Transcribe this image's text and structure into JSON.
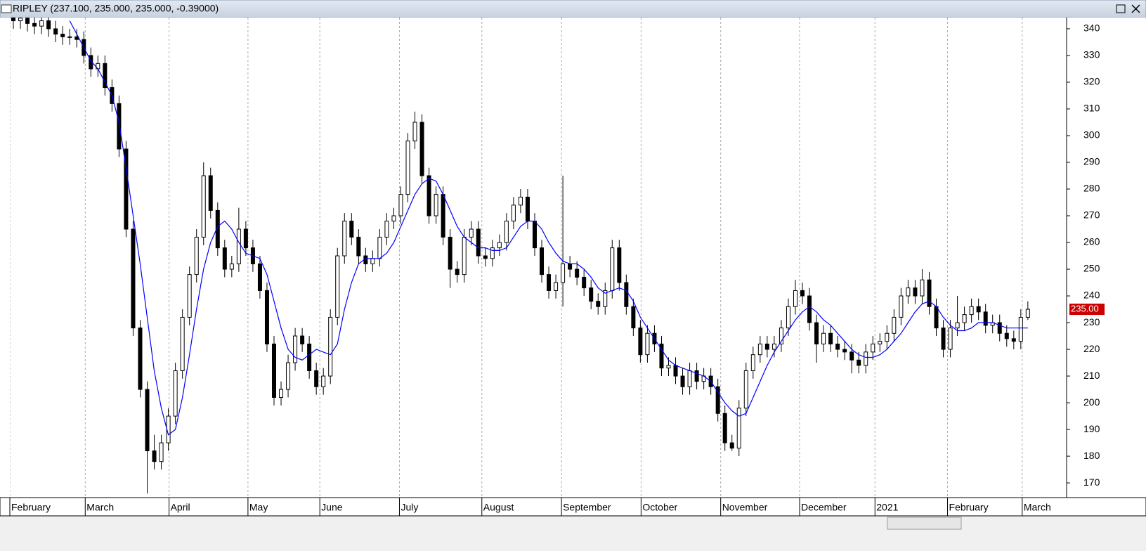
{
  "chart_data": {
    "type": "candlestick",
    "title": "RIPLEY (237.100, 235.000, 235.000, -0.39000)",
    "up_color": "#ffffff",
    "down_color": "#000000",
    "outline_color": "#000000",
    "ylim": [
      164.5,
      344.2
    ],
    "yticks": [
      170,
      180,
      190,
      200,
      210,
      220,
      230,
      240,
      250,
      260,
      270,
      280,
      290,
      300,
      310,
      320,
      330,
      340
    ],
    "xlim": [
      0,
      150
    ],
    "xticks": [
      {
        "value": 0,
        "label": "February"
      },
      {
        "value": 10.7,
        "label": "March"
      },
      {
        "value": 22.6,
        "label": "April"
      },
      {
        "value": 33.8,
        "label": "May"
      },
      {
        "value": 44,
        "label": "June"
      },
      {
        "value": 55.3,
        "label": "July"
      },
      {
        "value": 67,
        "label": "August"
      },
      {
        "value": 78.3,
        "label": "September"
      },
      {
        "value": 89.6,
        "label": "October"
      },
      {
        "value": 100.9,
        "label": "November"
      },
      {
        "value": 112.1,
        "label": "December"
      },
      {
        "value": 122.8,
        "label": "2021"
      },
      {
        "value": 133.1,
        "label": "February"
      },
      {
        "value": 143.7,
        "label": "March"
      }
    ],
    "grid": true,
    "last_price": {
      "value": 235,
      "label": "235.00",
      "color": "#cc0000"
    },
    "ohlc": [
      [
        345,
        348,
        340,
        343
      ],
      [
        343,
        347,
        340,
        344
      ],
      [
        344,
        347,
        339,
        342
      ],
      [
        342,
        345,
        338,
        341
      ],
      [
        341,
        346,
        338,
        343
      ],
      [
        343,
        346,
        337,
        340
      ],
      [
        340,
        343,
        335,
        338
      ],
      [
        338,
        341,
        334,
        337
      ],
      [
        337,
        340,
        334,
        337
      ],
      [
        337,
        340,
        333,
        336
      ],
      [
        336,
        339,
        327,
        330
      ],
      [
        330,
        333,
        322,
        325
      ],
      [
        325,
        330,
        322,
        327
      ],
      [
        327,
        330,
        315,
        318
      ],
      [
        318,
        321,
        309,
        312
      ],
      [
        312,
        315,
        292,
        295
      ],
      [
        295,
        298,
        262,
        265
      ],
      [
        265,
        268,
        225,
        228
      ],
      [
        228,
        231,
        202,
        205
      ],
      [
        205,
        208,
        166,
        182
      ],
      [
        182,
        188,
        175,
        178
      ],
      [
        178,
        188,
        175,
        185
      ],
      [
        185,
        198,
        182,
        195
      ],
      [
        195,
        215,
        192,
        212
      ],
      [
        212,
        235,
        209,
        232
      ],
      [
        232,
        251,
        229,
        248
      ],
      [
        248,
        265,
        245,
        262
      ],
      [
        262,
        290,
        259,
        285
      ],
      [
        285,
        288,
        269,
        272
      ],
      [
        272,
        275,
        255,
        258
      ],
      [
        258,
        261,
        247,
        250
      ],
      [
        250,
        255,
        247,
        252
      ],
      [
        252,
        273,
        249,
        265
      ],
      [
        265,
        268,
        255,
        258
      ],
      [
        258,
        261,
        249,
        252
      ],
      [
        252,
        255,
        239,
        242
      ],
      [
        242,
        245,
        219,
        222
      ],
      [
        222,
        225,
        199,
        202
      ],
      [
        202,
        208,
        199,
        205
      ],
      [
        205,
        218,
        202,
        215
      ],
      [
        215,
        228,
        212,
        225
      ],
      [
        225,
        228,
        219,
        222
      ],
      [
        222,
        225,
        209,
        212
      ],
      [
        212,
        215,
        203,
        206
      ],
      [
        206,
        213,
        203,
        210
      ],
      [
        210,
        235,
        207,
        232
      ],
      [
        232,
        258,
        229,
        255
      ],
      [
        255,
        271,
        252,
        268
      ],
      [
        268,
        271,
        259,
        262
      ],
      [
        262,
        265,
        252,
        255
      ],
      [
        255,
        258,
        249,
        252
      ],
      [
        252,
        257,
        249,
        254
      ],
      [
        254,
        265,
        251,
        262
      ],
      [
        262,
        271,
        259,
        268
      ],
      [
        268,
        273,
        265,
        270
      ],
      [
        270,
        281,
        267,
        278
      ],
      [
        278,
        301,
        275,
        298
      ],
      [
        298,
        309,
        295,
        305
      ],
      [
        305,
        308,
        282,
        285
      ],
      [
        285,
        288,
        267,
        270
      ],
      [
        270,
        281,
        267,
        278
      ],
      [
        278,
        281,
        259,
        262
      ],
      [
        262,
        265,
        243,
        250
      ],
      [
        250,
        253,
        245,
        248
      ],
      [
        248,
        265,
        245,
        262
      ],
      [
        262,
        268,
        259,
        265
      ],
      [
        265,
        268,
        252,
        255
      ],
      [
        255,
        258,
        251,
        254
      ],
      [
        254,
        261,
        251,
        258
      ],
      [
        258,
        263,
        255,
        260
      ],
      [
        260,
        271,
        257,
        268
      ],
      [
        268,
        277,
        265,
        274
      ],
      [
        274,
        280,
        271,
        277
      ],
      [
        277,
        280,
        265,
        268
      ],
      [
        268,
        271,
        255,
        258
      ],
      [
        258,
        261,
        245,
        248
      ],
      [
        248,
        251,
        239,
        242
      ],
      [
        242,
        248,
        239,
        245
      ],
      [
        245,
        285,
        236,
        252
      ],
      [
        252,
        255,
        247,
        250
      ],
      [
        250,
        253,
        244,
        247
      ],
      [
        247,
        250,
        240,
        243
      ],
      [
        243,
        246,
        235,
        238
      ],
      [
        238,
        241,
        233,
        236
      ],
      [
        236,
        245,
        233,
        242
      ],
      [
        242,
        261,
        239,
        258
      ],
      [
        258,
        261,
        242,
        245
      ],
      [
        245,
        248,
        233,
        236
      ],
      [
        236,
        239,
        225,
        228
      ],
      [
        228,
        231,
        215,
        218
      ],
      [
        218,
        229,
        215,
        226
      ],
      [
        226,
        229,
        219,
        222
      ],
      [
        222,
        225,
        210,
        213
      ],
      [
        213,
        217,
        210,
        214
      ],
      [
        214,
        217,
        207,
        210
      ],
      [
        210,
        213,
        203,
        206
      ],
      [
        206,
        215,
        203,
        212
      ],
      [
        212,
        215,
        205,
        208
      ],
      [
        208,
        213,
        205,
        210
      ],
      [
        210,
        213,
        203,
        206
      ],
      [
        206,
        209,
        193,
        196
      ],
      [
        196,
        199,
        182,
        185
      ],
      [
        185,
        188,
        182,
        183
      ],
      [
        183,
        201,
        180,
        198
      ],
      [
        198,
        215,
        195,
        212
      ],
      [
        212,
        221,
        209,
        218
      ],
      [
        218,
        225,
        215,
        222
      ],
      [
        222,
        225,
        217,
        220
      ],
      [
        220,
        225,
        217,
        222
      ],
      [
        222,
        231,
        219,
        228
      ],
      [
        228,
        239,
        225,
        236
      ],
      [
        236,
        246,
        233,
        242
      ],
      [
        242,
        245,
        237,
        240
      ],
      [
        240,
        243,
        227,
        230
      ],
      [
        230,
        233,
        215,
        222
      ],
      [
        222,
        229,
        219,
        226
      ],
      [
        226,
        229,
        219,
        222
      ],
      [
        222,
        225,
        217,
        220
      ],
      [
        220,
        223,
        216,
        219
      ],
      [
        219,
        222,
        211,
        216
      ],
      [
        216,
        219,
        211,
        214
      ],
      [
        214,
        222,
        211,
        219
      ],
      [
        219,
        225,
        216,
        222
      ],
      [
        222,
        226,
        219,
        223
      ],
      [
        223,
        229,
        220,
        226
      ],
      [
        226,
        235,
        223,
        232
      ],
      [
        232,
        243,
        229,
        240
      ],
      [
        240,
        246,
        237,
        243
      ],
      [
        243,
        246,
        237,
        240
      ],
      [
        240,
        250,
        237,
        246
      ],
      [
        246,
        249,
        233,
        236
      ],
      [
        236,
        239,
        225,
        228
      ],
      [
        228,
        231,
        217,
        220
      ],
      [
        220,
        231,
        217,
        228
      ],
      [
        228,
        240,
        225,
        230
      ],
      [
        230,
        236,
        227,
        233
      ],
      [
        233,
        239,
        230,
        236
      ],
      [
        236,
        239,
        231,
        234
      ],
      [
        234,
        237,
        226,
        229
      ],
      [
        229,
        233,
        226,
        230
      ],
      [
        230,
        233,
        223,
        226
      ],
      [
        226,
        229,
        221,
        224
      ],
      [
        224,
        227,
        220,
        223
      ],
      [
        223,
        235,
        220,
        232
      ],
      [
        232,
        238,
        231,
        235
      ]
    ],
    "moving_average": {
      "color": "#0000ff",
      "values": [
        null,
        null,
        null,
        null,
        null,
        null,
        null,
        null,
        343,
        338,
        333,
        328,
        325,
        320,
        315,
        305,
        288,
        270,
        252,
        232,
        212,
        198,
        188,
        190,
        202,
        218,
        235,
        250,
        260,
        266,
        268,
        265,
        260,
        256,
        255,
        254,
        248,
        238,
        228,
        220,
        217,
        216,
        218,
        220,
        219,
        218,
        222,
        235,
        245,
        252,
        254,
        254,
        254,
        256,
        260,
        266,
        272,
        278,
        282,
        284,
        283,
        278,
        272,
        266,
        262,
        260,
        258,
        258,
        257,
        257,
        258,
        262,
        266,
        268,
        268,
        265,
        260,
        256,
        253,
        252,
        252,
        250,
        247,
        243,
        241,
        242,
        243,
        242,
        238,
        232,
        228,
        224,
        220,
        216,
        214,
        213,
        212,
        211,
        210,
        208,
        204,
        200,
        197,
        195,
        196,
        202,
        208,
        214,
        219,
        223,
        227,
        231,
        234,
        236,
        234,
        231,
        229,
        226,
        223,
        220,
        218,
        217,
        217,
        218,
        220,
        223,
        226,
        230,
        234,
        237,
        238,
        236,
        232,
        229,
        227,
        227,
        228,
        230,
        230,
        230,
        229,
        228,
        228,
        228,
        228
      ]
    }
  }
}
